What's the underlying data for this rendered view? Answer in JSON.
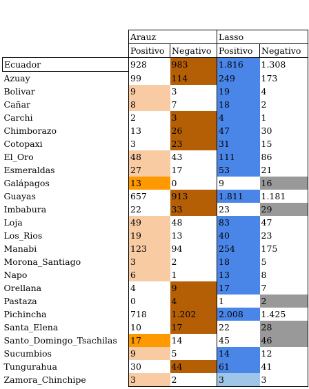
{
  "header": {
    "arauz": "Arauz",
    "lasso": "Lasso"
  },
  "subheader": [
    "Positivo",
    "Negativo",
    "Positivo",
    "Negativo"
  ],
  "colors": {
    "peach": "#f8cba3",
    "orange": "#ff9900",
    "brown": "#b45f06",
    "blue": "#4a86e8",
    "lightblue": "#9fc5e8",
    "gray": "#999999",
    "none": ""
  },
  "rows": [
    {
      "name": "Ecuador",
      "v": [
        "928",
        "983",
        "1.816",
        "1.308"
      ],
      "c": [
        "none",
        "brown",
        "blue",
        "none"
      ]
    },
    {
      "name": "Azuay",
      "v": [
        "99",
        "114",
        "249",
        "173"
      ],
      "c": [
        "none",
        "brown",
        "blue",
        "none"
      ]
    },
    {
      "name": "Bolivar",
      "v": [
        "9",
        "3",
        "19",
        "4"
      ],
      "c": [
        "peach",
        "none",
        "blue",
        "none"
      ]
    },
    {
      "name": "Cañar",
      "v": [
        "8",
        "7",
        "18",
        "2"
      ],
      "c": [
        "peach",
        "none",
        "blue",
        "none"
      ]
    },
    {
      "name": "Carchi",
      "v": [
        "2",
        "3",
        "4",
        "1"
      ],
      "c": [
        "none",
        "brown",
        "blue",
        "none"
      ]
    },
    {
      "name": "Chimborazo",
      "v": [
        "13",
        "26",
        "47",
        "30"
      ],
      "c": [
        "none",
        "brown",
        "blue",
        "none"
      ]
    },
    {
      "name": "Cotopaxi",
      "v": [
        "3",
        "23",
        "31",
        "15"
      ],
      "c": [
        "none",
        "brown",
        "blue",
        "none"
      ]
    },
    {
      "name": "El_Oro",
      "v": [
        "48",
        "43",
        "111",
        "86"
      ],
      "c": [
        "peach",
        "none",
        "blue",
        "none"
      ]
    },
    {
      "name": "Esmeraldas",
      "v": [
        "27",
        "17",
        "53",
        "21"
      ],
      "c": [
        "peach",
        "none",
        "blue",
        "none"
      ]
    },
    {
      "name": "Galápagos",
      "v": [
        "13",
        "0",
        "9",
        "16"
      ],
      "c": [
        "orange",
        "none",
        "none",
        "gray"
      ]
    },
    {
      "name": "Guayas",
      "v": [
        "657",
        "913",
        "1.811",
        "1.181"
      ],
      "c": [
        "none",
        "brown",
        "blue",
        "none"
      ]
    },
    {
      "name": "Imbabura",
      "v": [
        "22",
        "33",
        "23",
        "29"
      ],
      "c": [
        "none",
        "brown",
        "none",
        "gray"
      ]
    },
    {
      "name": "Loja",
      "v": [
        "49",
        "48",
        "83",
        "47"
      ],
      "c": [
        "peach",
        "none",
        "blue",
        "none"
      ]
    },
    {
      "name": "Los_Rios",
      "v": [
        "19",
        "13",
        "40",
        "23"
      ],
      "c": [
        "peach",
        "none",
        "blue",
        "none"
      ]
    },
    {
      "name": "Manabi",
      "v": [
        "123",
        "94",
        "254",
        "175"
      ],
      "c": [
        "peach",
        "none",
        "blue",
        "none"
      ]
    },
    {
      "name": "Morona_Santiago",
      "v": [
        "3",
        "2",
        "18",
        "5"
      ],
      "c": [
        "peach",
        "none",
        "blue",
        "none"
      ]
    },
    {
      "name": "Napo",
      "v": [
        "6",
        "1",
        "13",
        "8"
      ],
      "c": [
        "peach",
        "none",
        "blue",
        "none"
      ]
    },
    {
      "name": "Orellana",
      "v": [
        "4",
        "9",
        "17",
        "7"
      ],
      "c": [
        "none",
        "brown",
        "blue",
        "none"
      ]
    },
    {
      "name": "Pastaza",
      "v": [
        "0",
        "4",
        "1",
        "2"
      ],
      "c": [
        "none",
        "brown",
        "none",
        "gray"
      ]
    },
    {
      "name": "Pichincha",
      "v": [
        "718",
        "1.202",
        "2.008",
        "1.425"
      ],
      "c": [
        "none",
        "brown",
        "blue",
        "none"
      ]
    },
    {
      "name": "Santa_Elena",
      "v": [
        "10",
        "17",
        "22",
        "28"
      ],
      "c": [
        "none",
        "brown",
        "none",
        "gray"
      ]
    },
    {
      "name": "Santo_Domingo_Tsachilas",
      "v": [
        "17",
        "14",
        "45",
        "46"
      ],
      "c": [
        "orange",
        "none",
        "none",
        "gray"
      ]
    },
    {
      "name": "Sucumbios",
      "v": [
        "9",
        "5",
        "14",
        "12"
      ],
      "c": [
        "peach",
        "none",
        "blue",
        "none"
      ]
    },
    {
      "name": "Tungurahua",
      "v": [
        "30",
        "44",
        "61",
        "41"
      ],
      "c": [
        "none",
        "brown",
        "blue",
        "none"
      ]
    },
    {
      "name": "Zamora_Chinchipe",
      "v": [
        "3",
        "2",
        "3",
        "3"
      ],
      "c": [
        "peach",
        "none",
        "lightblue",
        "none"
      ]
    }
  ]
}
